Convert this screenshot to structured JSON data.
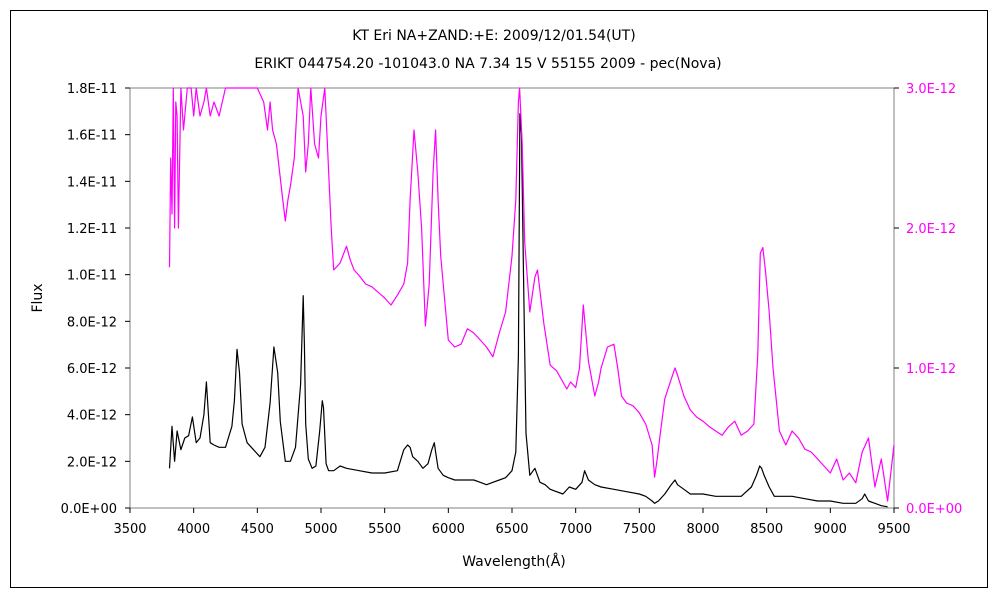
{
  "chart_data": {
    "type": "line",
    "title": "KT Eri    NA+ZAND:+E:    2009/12/01.54(UT)",
    "subtitle": "ERIKT 044754.20 -101043.0 NA 7.34 15 V 55155 2009 - pec(Nova)",
    "xlabel": "Wavelength(Å)",
    "ylabel": "Flux",
    "xlim": [
      3500,
      9500
    ],
    "ylim": [
      0,
      1.8e-11
    ],
    "y2lim": [
      0,
      3e-12
    ],
    "grid": false,
    "x_ticks": [
      "3500",
      "4000",
      "4500",
      "5000",
      "5500",
      "6000",
      "6500",
      "7000",
      "7500",
      "8000",
      "8500",
      "9000",
      "9500"
    ],
    "y_ticks": [
      "0.0E+00",
      "2.0E-12",
      "4.0E-12",
      "6.0E-12",
      "8.0E-12",
      "1.0E-11",
      "1.2E-11",
      "1.4E-11",
      "1.6E-11",
      "1.8E-11"
    ],
    "y2_ticks": [
      "0.0E+00",
      "1.0E-12",
      "2.0E-12",
      "3.0E-12"
    ],
    "colors": {
      "primary": "#000000",
      "secondary": "#ff00ff"
    },
    "series": [
      {
        "axis": "left",
        "color": "#000000",
        "x": [
          3810,
          3830,
          3850,
          3870,
          3900,
          3930,
          3960,
          3990,
          4020,
          4050,
          4080,
          4100,
          4110,
          4130,
          4160,
          4200,
          4250,
          4300,
          4320,
          4340,
          4360,
          4380,
          4420,
          4470,
          4520,
          4560,
          4600,
          4630,
          4660,
          4680,
          4720,
          4760,
          4800,
          4840,
          4860,
          4870,
          4880,
          4900,
          4930,
          4960,
          4990,
          5010,
          5020,
          5040,
          5060,
          5100,
          5150,
          5200,
          5300,
          5400,
          5500,
          5600,
          5650,
          5680,
          5700,
          5720,
          5760,
          5800,
          5840,
          5870,
          5890,
          5900,
          5920,
          5960,
          6000,
          6050,
          6100,
          6150,
          6200,
          6250,
          6300,
          6350,
          6400,
          6450,
          6500,
          6530,
          6550,
          6562,
          6575,
          6590,
          6610,
          6640,
          6680,
          6720,
          6760,
          6800,
          6900,
          6950,
          7000,
          7050,
          7070,
          7100,
          7150,
          7200,
          7300,
          7400,
          7500,
          7550,
          7600,
          7620,
          7650,
          7700,
          7750,
          7780,
          7800,
          7850,
          7900,
          8000,
          8100,
          8200,
          8300,
          8380,
          8420,
          8445,
          8460,
          8480,
          8520,
          8560,
          8600,
          8700,
          8800,
          8900,
          9000,
          9100,
          9200,
          9250,
          9270,
          9300,
          9350,
          9400,
          9450
        ],
        "y": [
          1.7e-12,
          3.5e-12,
          2e-12,
          3.3e-12,
          2.5e-12,
          3e-12,
          3.1e-12,
          3.9e-12,
          2.8e-12,
          3e-12,
          4e-12,
          5.4e-12,
          4.5e-12,
          2.8e-12,
          2.7e-12,
          2.6e-12,
          2.6e-12,
          3.5e-12,
          4.6e-12,
          6.8e-12,
          5.8e-12,
          3.6e-12,
          2.8e-12,
          2.5e-12,
          2.2e-12,
          2.6e-12,
          4.5e-12,
          6.9e-12,
          5.8e-12,
          3.7e-12,
          2e-12,
          2e-12,
          2.6e-12,
          5.3e-12,
          9.1e-12,
          7e-12,
          3.6e-12,
          2.1e-12,
          1.7e-12,
          1.8e-12,
          3.3e-12,
          4.6e-12,
          4.3e-12,
          1.9e-12,
          1.6e-12,
          1.6e-12,
          1.8e-12,
          1.7e-12,
          1.6e-12,
          1.5e-12,
          1.5e-12,
          1.6e-12,
          2.5e-12,
          2.7e-12,
          2.6e-12,
          2.2e-12,
          2e-12,
          1.7e-12,
          1.9e-12,
          2.5e-12,
          2.8e-12,
          2.4e-12,
          1.7e-12,
          1.4e-12,
          1.3e-12,
          1.2e-12,
          1.2e-12,
          1.2e-12,
          1.2e-12,
          1.1e-12,
          1e-12,
          1.1e-12,
          1.2e-12,
          1.3e-12,
          1.6e-12,
          2.4e-12,
          6.5e-12,
          1.69e-11,
          1.6e-11,
          1e-11,
          3.2e-12,
          1.4e-12,
          1.7e-12,
          1.1e-12,
          1e-12,
          8e-13,
          6e-13,
          9e-13,
          8e-13,
          1.1e-12,
          1.6e-12,
          1.2e-12,
          1e-12,
          9e-13,
          8e-13,
          7e-13,
          6e-13,
          5e-13,
          3e-13,
          2e-13,
          3e-13,
          6e-13,
          1e-12,
          1.2e-12,
          1e-12,
          8e-13,
          6e-13,
          6e-13,
          5e-13,
          5e-13,
          5e-13,
          9e-13,
          1.4e-12,
          1.8e-12,
          1.7e-12,
          1.4e-12,
          9e-13,
          5e-13,
          5e-13,
          5e-13,
          4e-13,
          3e-13,
          3e-13,
          2e-13,
          2e-13,
          4e-13,
          6e-13,
          3e-13,
          2e-13,
          1e-13,
          5e-14
        ]
      },
      {
        "axis": "right",
        "color": "#ff00ff",
        "x": [
          3810,
          3820,
          3830,
          3840,
          3850,
          3860,
          3870,
          3880,
          3900,
          3920,
          3950,
          3980,
          4000,
          4020,
          4050,
          4080,
          4100,
          4130,
          4160,
          4200,
          4250,
          4300,
          4350,
          4400,
          4450,
          4500,
          4550,
          4580,
          4600,
          4620,
          4650,
          4700,
          4720,
          4740,
          4760,
          4790,
          4820,
          4860,
          4880,
          4900,
          4920,
          4950,
          4980,
          5000,
          5030,
          5050,
          5080,
          5100,
          5150,
          5200,
          5230,
          5260,
          5300,
          5350,
          5400,
          5450,
          5500,
          5550,
          5600,
          5650,
          5680,
          5700,
          5730,
          5760,
          5790,
          5820,
          5850,
          5880,
          5900,
          5920,
          5940,
          5970,
          6000,
          6050,
          6100,
          6150,
          6200,
          6250,
          6300,
          6350,
          6400,
          6450,
          6500,
          6530,
          6550,
          6560,
          6580,
          6600,
          6640,
          6680,
          6700,
          6750,
          6800,
          6850,
          6900,
          6930,
          6960,
          7000,
          7030,
          7060,
          7100,
          7150,
          7180,
          7200,
          7250,
          7300,
          7330,
          7360,
          7400,
          7450,
          7500,
          7550,
          7600,
          7620,
          7640,
          7660,
          7700,
          7750,
          7780,
          7800,
          7850,
          7900,
          7950,
          8000,
          8050,
          8100,
          8150,
          8200,
          8250,
          8300,
          8350,
          8400,
          8430,
          8450,
          8470,
          8490,
          8520,
          8550,
          8600,
          8650,
          8700,
          8750,
          8800,
          8850,
          8900,
          8950,
          9000,
          9050,
          9100,
          9150,
          9200,
          9250,
          9300,
          9350,
          9400,
          9450,
          9500
        ],
        "y": [
          1.72e-12,
          2.5e-12,
          2.1e-12,
          3e-12,
          2e-12,
          2.9e-12,
          2.8e-12,
          2e-12,
          3e-12,
          2.7e-12,
          3e-12,
          3e-12,
          2.8e-12,
          3e-12,
          2.8e-12,
          2.9e-12,
          3e-12,
          2.8e-12,
          2.9e-12,
          2.8e-12,
          3e-12,
          3e-12,
          3e-12,
          3e-12,
          3e-12,
          3e-12,
          2.9e-12,
          2.7e-12,
          2.9e-12,
          2.7e-12,
          2.6e-12,
          2.2e-12,
          2.05e-12,
          2.2e-12,
          2.3e-12,
          2.5e-12,
          3e-12,
          2.8e-12,
          2.4e-12,
          2.6e-12,
          3e-12,
          2.6e-12,
          2.5e-12,
          2.8e-12,
          3e-12,
          2.6e-12,
          2e-12,
          1.7e-12,
          1.75e-12,
          1.87e-12,
          1.77e-12,
          1.7e-12,
          1.66e-12,
          1.6e-12,
          1.58e-12,
          1.54e-12,
          1.5e-12,
          1.45e-12,
          1.52e-12,
          1.6e-12,
          1.75e-12,
          2.2e-12,
          2.7e-12,
          2.4e-12,
          2e-12,
          1.3e-12,
          1.6e-12,
          2.4e-12,
          2.7e-12,
          2.2e-12,
          1.8e-12,
          1.5e-12,
          1.2e-12,
          1.15e-12,
          1.17e-12,
          1.28e-12,
          1.25e-12,
          1.2e-12,
          1.15e-12,
          1.08e-12,
          1.25e-12,
          1.4e-12,
          1.8e-12,
          2.2e-12,
          2.9e-12,
          3e-12,
          2.6e-12,
          1.9e-12,
          1.4e-12,
          1.65e-12,
          1.7e-12,
          1.32e-12,
          1.02e-12,
          9.8e-13,
          9e-13,
          8.5e-13,
          9e-13,
          8.6e-13,
          1e-12,
          1.45e-12,
          1.05e-12,
          8e-13,
          9e-13,
          1e-12,
          1.15e-12,
          1.17e-12,
          1e-12,
          8e-13,
          7.5e-13,
          7.3e-13,
          6.8e-13,
          6e-13,
          4.5e-13,
          2.2e-13,
          3.5e-13,
          5e-13,
          7.8e-13,
          9.2e-13,
          1e-12,
          9.5e-13,
          8e-13,
          7e-13,
          6.5e-13,
          6.2e-13,
          5.8e-13,
          5.5e-13,
          5.2e-13,
          5.8e-13,
          6.2e-13,
          5.2e-13,
          5.5e-13,
          6e-13,
          1.1e-12,
          1.82e-12,
          1.86e-12,
          1.7e-12,
          1.4e-12,
          1e-12,
          5.5e-13,
          4.5e-13,
          5.5e-13,
          5e-13,
          4.2e-13,
          4e-13,
          3.5e-13,
          3e-13,
          2.5e-13,
          3.5e-13,
          2e-13,
          2.5e-13,
          1.8e-13,
          4e-13,
          5e-13,
          1.5e-13,
          3.5e-13,
          5e-14,
          4.5e-13
        ]
      }
    ]
  }
}
